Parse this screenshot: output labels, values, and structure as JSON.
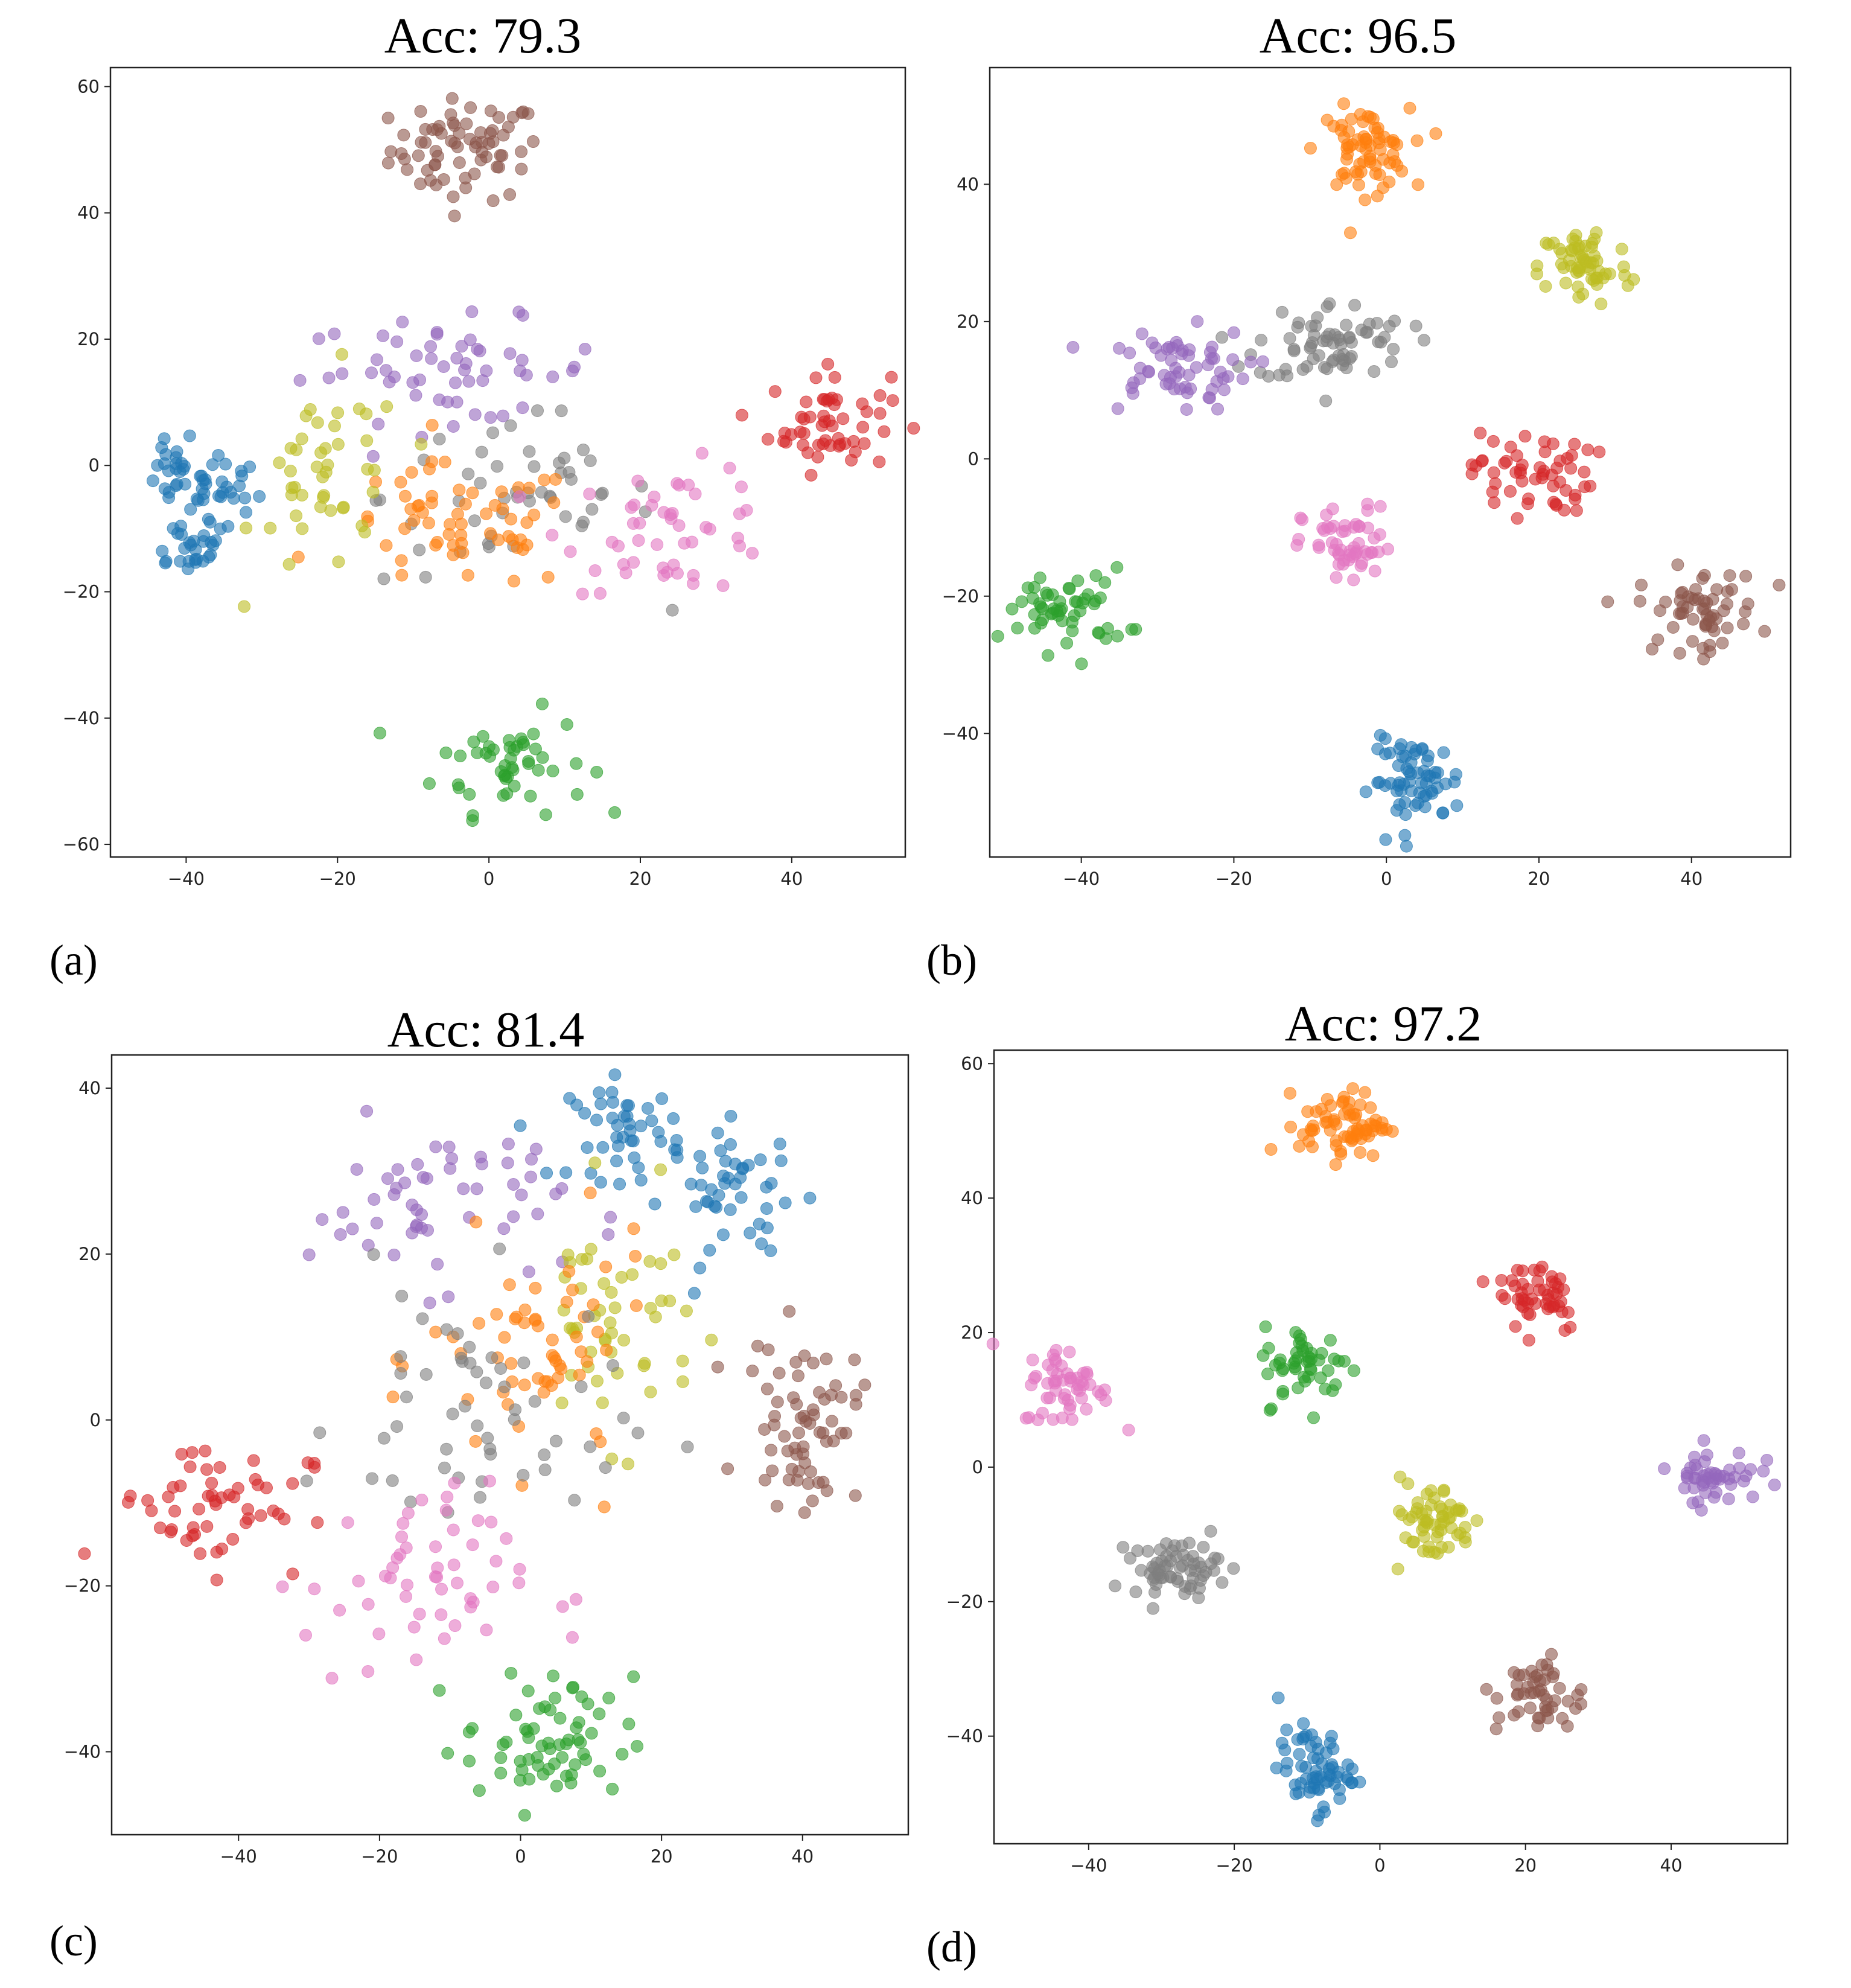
{
  "figure": {
    "panels": [
      {
        "id": "a",
        "title": "Acc: 79.3",
        "label": "(a)"
      },
      {
        "id": "b",
        "title": "Acc: 96.5",
        "label": "(b)"
      },
      {
        "id": "c",
        "title": "Acc: 81.4",
        "label": "(c)"
      },
      {
        "id": "d",
        "title": "Acc: 97.2",
        "label": "(d)"
      }
    ]
  },
  "colors": {
    "c0": "#1f77b4",
    "c1": "#ff7f0e",
    "c2": "#2ca02c",
    "c3": "#d62728",
    "c4": "#9467bd",
    "c5": "#8c564b",
    "c6": "#e377c2",
    "c7": "#7f7f7f",
    "c8": "#bcbd22"
  },
  "chart_data": [
    {
      "type": "scatter",
      "title": "Acc: 79.3",
      "xlabel": "",
      "ylabel": "",
      "xlim": [
        -50,
        55
      ],
      "ylim": [
        -62,
        63
      ],
      "xticks": [
        -40,
        -20,
        0,
        20,
        40
      ],
      "yticks": [
        -60,
        -40,
        -20,
        0,
        20,
        40,
        60
      ],
      "clusters": [
        {
          "color": "c5",
          "cx": -3,
          "cy": 50,
          "sx": 5,
          "sy": 4,
          "n": 70
        },
        {
          "color": "c0",
          "cx": -41,
          "cy": -2,
          "sx": 3,
          "sy": 2.5,
          "n": 25
        },
        {
          "color": "c0",
          "cx": -36,
          "cy": -4,
          "sx": 3,
          "sy": 4,
          "n": 30
        },
        {
          "color": "c0",
          "cx": -40,
          "cy": -13,
          "sx": 3,
          "sy": 2,
          "n": 25
        },
        {
          "color": "c2",
          "cx": 3,
          "cy": -47,
          "sx": 5,
          "sy": 4,
          "n": 50
        },
        {
          "color": "c3",
          "cx": 45,
          "cy": 7,
          "sx": 4,
          "sy": 4,
          "n": 55
        },
        {
          "color": "c4",
          "cx": -5,
          "cy": 15,
          "sx": 10,
          "sy": 4,
          "n": 55
        },
        {
          "color": "c7",
          "cx": 4,
          "cy": -5,
          "sx": 9,
          "sy": 7,
          "n": 50
        },
        {
          "color": "c1",
          "cx": -4,
          "cy": -10,
          "sx": 8,
          "sy": 5,
          "n": 60
        },
        {
          "color": "c8",
          "cx": -21,
          "cy": -2,
          "sx": 5,
          "sy": 8,
          "n": 45
        },
        {
          "color": "c6",
          "cx": 24,
          "cy": -10,
          "sx": 7,
          "sy": 5,
          "n": 50
        }
      ]
    },
    {
      "type": "scatter",
      "title": "Acc: 96.5",
      "xlabel": "",
      "ylabel": "",
      "xlim": [
        -52,
        53
      ],
      "ylim": [
        -58,
        57
      ],
      "xticks": [
        -40,
        -20,
        0,
        20,
        40
      ],
      "yticks": [
        -40,
        -20,
        0,
        20,
        40
      ],
      "clusters": [
        {
          "color": "c1",
          "cx": -3,
          "cy": 45,
          "sx": 3,
          "sy": 3,
          "n": 70
        },
        {
          "color": "c8",
          "cx": 26,
          "cy": 28,
          "sx": 3,
          "sy": 3,
          "n": 60
        },
        {
          "color": "c7",
          "cx": -7,
          "cy": 17,
          "sx": 5,
          "sy": 3,
          "n": 70
        },
        {
          "color": "c4",
          "cx": -28,
          "cy": 13,
          "sx": 5,
          "sy": 3,
          "n": 60
        },
        {
          "color": "c3",
          "cx": 19,
          "cy": -2,
          "sx": 4,
          "sy": 3,
          "n": 55
        },
        {
          "color": "c6",
          "cx": -5,
          "cy": -13,
          "sx": 3,
          "sy": 3,
          "n": 55
        },
        {
          "color": "c2",
          "cx": -42,
          "cy": -22,
          "sx": 4,
          "sy": 3,
          "n": 55
        },
        {
          "color": "c5",
          "cx": 41,
          "cy": -22,
          "sx": 4,
          "sy": 3,
          "n": 60
        },
        {
          "color": "c0",
          "cx": 4,
          "cy": -47,
          "sx": 3,
          "sy": 3,
          "n": 65
        }
      ]
    },
    {
      "type": "scatter",
      "title": "Acc: 81.4",
      "xlabel": "",
      "ylabel": "",
      "xlim": [
        -58,
        55
      ],
      "ylim": [
        -50,
        44
      ],
      "xticks": [
        -40,
        -20,
        0,
        20,
        40
      ],
      "yticks": [
        -40,
        -20,
        0,
        20,
        40
      ],
      "clusters": [
        {
          "color": "c0",
          "cx": 15,
          "cy": 35,
          "sx": 4,
          "sy": 3,
          "n": 45
        },
        {
          "color": "c0",
          "cx": 31,
          "cy": 27,
          "sx": 5,
          "sy": 4,
          "n": 45
        },
        {
          "color": "c4",
          "cx": -12,
          "cy": 26,
          "sx": 9,
          "sy": 5,
          "n": 55
        },
        {
          "color": "c8",
          "cx": 13,
          "cy": 12,
          "sx": 6,
          "sy": 7,
          "n": 50
        },
        {
          "color": "c1",
          "cx": 3,
          "cy": 7,
          "sx": 8,
          "sy": 7,
          "n": 60
        },
        {
          "color": "c7",
          "cx": -6,
          "cy": 0,
          "sx": 10,
          "sy": 8,
          "n": 55
        },
        {
          "color": "c5",
          "cx": 40,
          "cy": 0,
          "sx": 4,
          "sy": 5,
          "n": 65
        },
        {
          "color": "c3",
          "cx": -44,
          "cy": -10,
          "sx": 7,
          "sy": 4,
          "n": 55
        },
        {
          "color": "c6",
          "cx": -15,
          "cy": -20,
          "sx": 8,
          "sy": 6,
          "n": 55
        },
        {
          "color": "c2",
          "cx": 4,
          "cy": -39,
          "sx": 6,
          "sy": 4,
          "n": 65
        }
      ]
    },
    {
      "type": "scatter",
      "title": "Acc: 97.2",
      "xlabel": "",
      "ylabel": "",
      "xlim": [
        -53,
        56
      ],
      "ylim": [
        -56,
        62
      ],
      "xticks": [
        -40,
        -20,
        0,
        20,
        40
      ],
      "yticks": [
        -40,
        -20,
        0,
        20,
        40,
        60
      ],
      "clusters": [
        {
          "color": "c1",
          "cx": -5,
          "cy": 51,
          "sx": 3,
          "sy": 2.5,
          "n": 70
        },
        {
          "color": "c3",
          "cx": 22,
          "cy": 26,
          "sx": 3,
          "sy": 3,
          "n": 50
        },
        {
          "color": "c2",
          "cx": -10,
          "cy": 15,
          "sx": 3,
          "sy": 3,
          "n": 50
        },
        {
          "color": "c6",
          "cx": -43,
          "cy": 12,
          "sx": 3,
          "sy": 3,
          "n": 55
        },
        {
          "color": "c4",
          "cx": 46,
          "cy": -1,
          "sx": 3,
          "sy": 2,
          "n": 50
        },
        {
          "color": "c8",
          "cx": 7,
          "cy": -8,
          "sx": 3,
          "sy": 3,
          "n": 60
        },
        {
          "color": "c7",
          "cx": -28,
          "cy": -15,
          "sx": 3,
          "sy": 2,
          "n": 65
        },
        {
          "color": "c5",
          "cx": 22,
          "cy": -34,
          "sx": 3,
          "sy": 3,
          "n": 50
        },
        {
          "color": "c0",
          "cx": -9,
          "cy": -45,
          "sx": 2.5,
          "sy": 3,
          "n": 65
        }
      ]
    }
  ]
}
